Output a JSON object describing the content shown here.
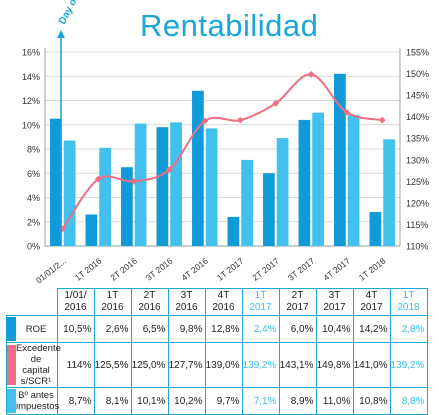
{
  "title": "Rentabilidad",
  "annotation": "Day one",
  "colors": {
    "roe": "#0e9bd8",
    "beneficio": "#42c1ee",
    "excedente": "#f06e82",
    "grid": "#cfcfcf",
    "accent": "#1aa6d9",
    "highlight": "#3cc0ec"
  },
  "chart_data": {
    "type": "bar",
    "categories": [
      "01/01/2...",
      "1T 2016",
      "2T 2016",
      "3T 2016",
      "4T 2016",
      "1T 2017",
      "2T 2017",
      "3T 2017",
      "4T 2017",
      "1T 2018"
    ],
    "series": [
      {
        "name": "ROE",
        "type": "bar",
        "axis": "left",
        "values": [
          10.5,
          2.6,
          6.5,
          9.8,
          12.8,
          2.4,
          6.0,
          10.4,
          14.2,
          2.8
        ]
      },
      {
        "name": "Bº antes impuestos",
        "type": "bar",
        "axis": "left",
        "values": [
          8.7,
          8.1,
          10.1,
          10.2,
          9.7,
          7.1,
          8.9,
          11.0,
          10.8,
          8.8
        ]
      },
      {
        "name": "Excedente de capital s/SCR",
        "type": "line",
        "axis": "right",
        "values": [
          114,
          125.5,
          125.0,
          127.7,
          139.0,
          139.2,
          143.1,
          149.8,
          141.0,
          139.2
        ]
      }
    ],
    "y_left": {
      "ylim": [
        0,
        16
      ],
      "ticks": [
        "0%",
        "2%",
        "4%",
        "6%",
        "8%",
        "10%",
        "12%",
        "14%",
        "16%"
      ]
    },
    "y_right": {
      "ylim": [
        110,
        155
      ],
      "ticks": [
        "110%",
        "115%",
        "120%",
        "125%",
        "130%",
        "135%",
        "140%",
        "145%",
        "150%",
        "155%"
      ]
    },
    "grid": true
  },
  "table": {
    "columns": [
      [
        "1/01/",
        "2016"
      ],
      [
        "1T",
        "2016"
      ],
      [
        "2T",
        "2016"
      ],
      [
        "3T",
        "2016"
      ],
      [
        "4T",
        "2016"
      ],
      [
        "1T",
        "2017"
      ],
      [
        "2T",
        "2017"
      ],
      [
        "3T",
        "2017"
      ],
      [
        "4T",
        "2017"
      ],
      [
        "1T",
        "2018"
      ]
    ],
    "highlight_columns": [
      5,
      9
    ],
    "rows": [
      {
        "label": [
          "ROE"
        ],
        "swatch": "#0e9bd8",
        "values": [
          "10,5%",
          "2,6%",
          "6,5%",
          "9,8%",
          "12,8%",
          "2,4%",
          "6,0%",
          "10,4%",
          "14,2%",
          "2,8%"
        ]
      },
      {
        "label": [
          "Excedente",
          "de capital",
          "s/SCR¹"
        ],
        "swatch": "#f06e82",
        "values": [
          "114%",
          "125,5%",
          "125,0%",
          "127,7%",
          "139,0%",
          "139,2%",
          "143,1%",
          "149,8%",
          "141,0%",
          "139,2%"
        ]
      },
      {
        "label": [
          "Bº antes",
          "impuestos"
        ],
        "swatch": "#42c1ee",
        "values": [
          "8,7%",
          "8,1%",
          "10,1%",
          "10,2%",
          "9,7%",
          "7,1%",
          "8,9%",
          "11,0%",
          "10,8%",
          "8,8%"
        ]
      }
    ]
  }
}
